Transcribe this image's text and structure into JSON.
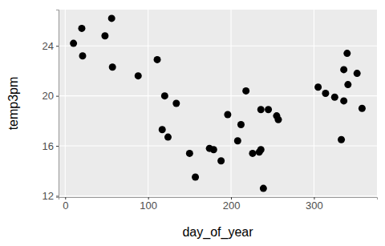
{
  "chart_data": {
    "type": "scatter",
    "x_label": "day_of_year",
    "y_label": "temp3pm",
    "x": [
      10,
      20,
      21,
      48,
      56,
      57,
      88,
      111,
      117,
      120,
      124,
      134,
      150,
      157,
      174,
      179,
      188,
      196,
      208,
      212,
      218,
      226,
      234,
      236,
      236,
      239,
      245,
      255,
      257,
      305,
      314,
      325,
      333,
      336,
      336,
      340,
      341,
      352,
      358
    ],
    "values": [
      24.2,
      25.4,
      23.2,
      24.8,
      26.2,
      22.3,
      21.6,
      22.9,
      17.3,
      20.0,
      16.7,
      19.4,
      15.4,
      13.5,
      15.8,
      15.7,
      14.8,
      18.5,
      16.4,
      17.7,
      20.4,
      15.4,
      15.5,
      15.7,
      18.9,
      12.6,
      18.9,
      18.4,
      18.1,
      20.7,
      20.2,
      19.9,
      16.5,
      22.1,
      19.6,
      23.4,
      20.9,
      21.8,
      19.0
    ],
    "color": "#000000",
    "marker": "circle",
    "xlim": [
      -8,
      376
    ],
    "xticks": [
      0,
      100,
      200,
      300
    ],
    "ylim": [
      11.9,
      26.9
    ],
    "yticks": [
      12,
      16,
      20,
      24
    ],
    "grid": true
  }
}
